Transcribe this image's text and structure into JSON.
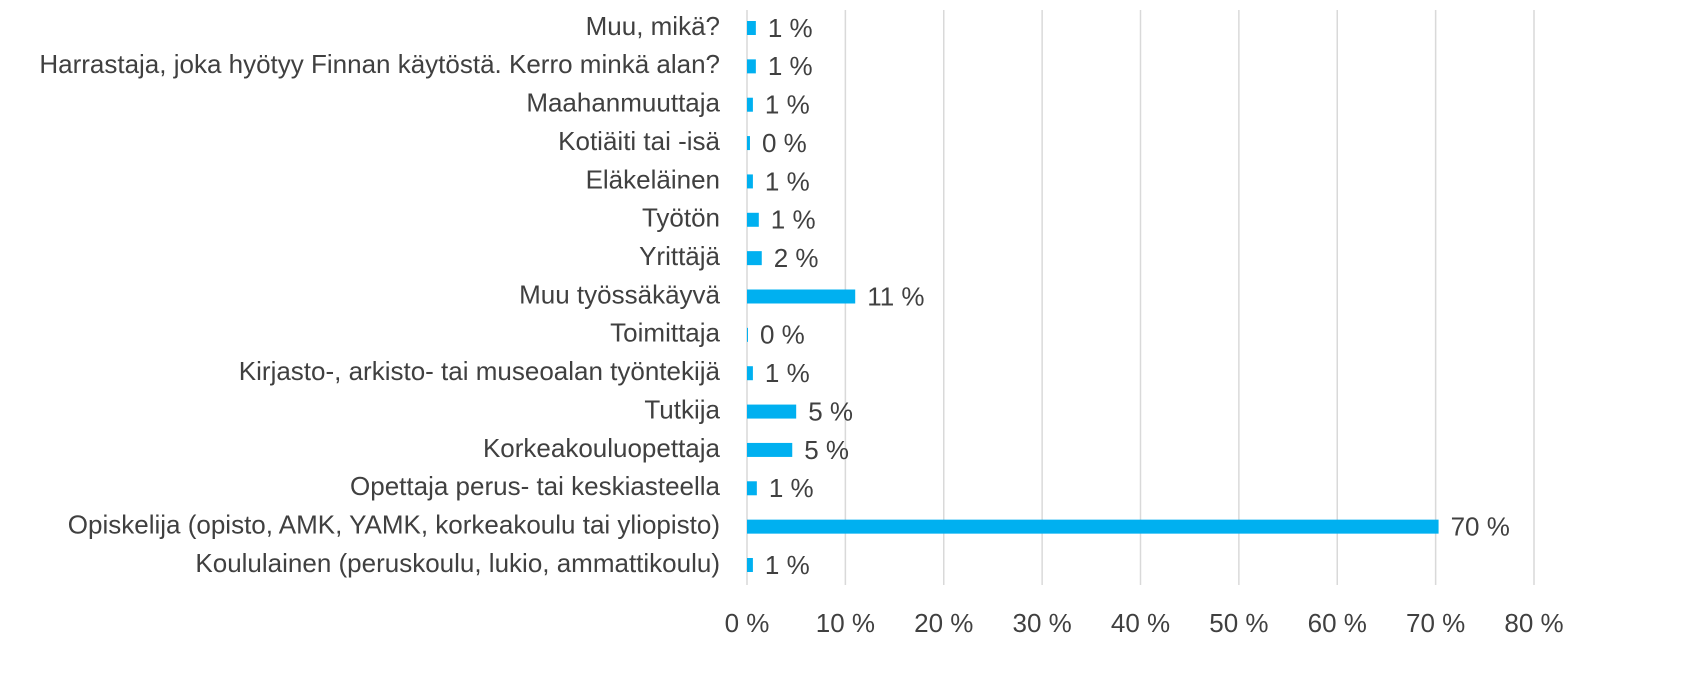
{
  "chart_data": {
    "type": "bar",
    "orientation": "horizontal",
    "color": "#00b0f0",
    "grid": true,
    "categories": [
      "Muu, mikä?",
      "Harrastaja, joka hyötyy Finnan käytöstä. Kerro minkä alan?",
      "Maahanmuuttaja",
      "Kotiäiti tai -isä",
      "Eläkeläinen",
      "Työtön",
      "Yrittäjä",
      "Muu työssäkäyvä",
      "Toimittaja",
      "Kirjasto-, arkisto- tai museoalan työntekijä",
      "Tutkija",
      "Korkeakouluopettaja",
      "Opettaja perus- tai keskiasteella",
      "Opiskelija (opisto, AMK, YAMK, korkeakoulu tai yliopisto)",
      "Koululainen (peruskoulu, lukio, ammattikoulu)"
    ],
    "values": [
      0.9,
      0.9,
      0.6,
      0.3,
      0.6,
      1.2,
      1.5,
      11.0,
      0.1,
      0.6,
      5.0,
      4.6,
      1.0,
      70.3,
      0.6
    ],
    "value_labels": [
      "1 %",
      "1 %",
      "1 %",
      "0 %",
      "1 %",
      "1 %",
      "2 %",
      "11 %",
      "0 %",
      "1 %",
      "5 %",
      "5 %",
      "1 %",
      "70 %",
      "1 %"
    ],
    "xlim": [
      0,
      80
    ],
    "xticks": [
      {
        "value": 0,
        "label": "0 %"
      },
      {
        "value": 10,
        "label": "10 %"
      },
      {
        "value": 20,
        "label": "20 %"
      },
      {
        "value": 30,
        "label": "30 %"
      },
      {
        "value": 40,
        "label": "40 %"
      },
      {
        "value": 50,
        "label": "50 %"
      },
      {
        "value": 60,
        "label": "60 %"
      },
      {
        "value": 70,
        "label": "70 %"
      },
      {
        "value": 80,
        "label": "80 %"
      }
    ]
  }
}
